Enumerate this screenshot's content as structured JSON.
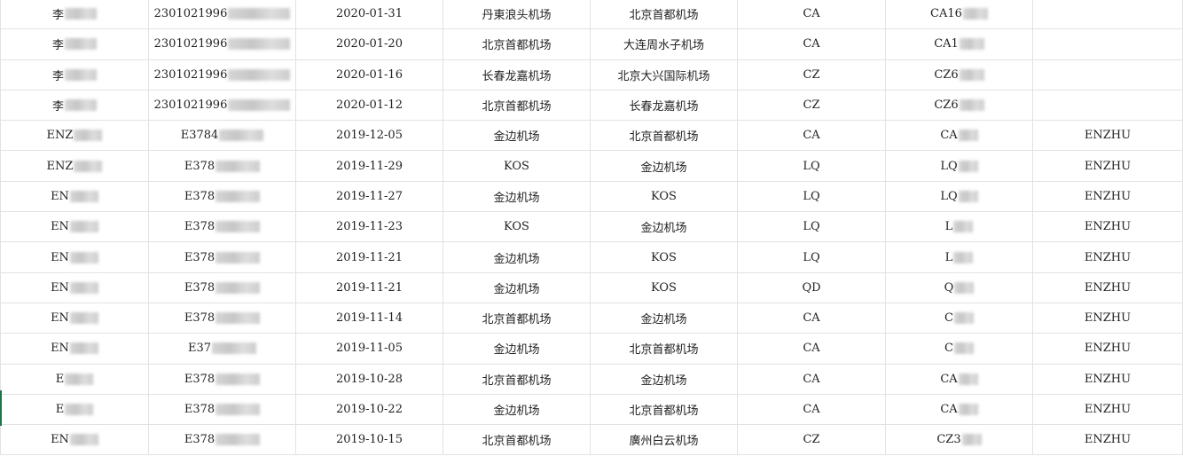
{
  "rows": [
    [
      "李",
      "2301021996",
      "2020-01-31",
      "丹東浪头机场",
      "北京首都机场",
      "CA",
      "CA16",
      ""
    ],
    [
      "李",
      "2301021996",
      "2020-01-20",
      "北京首都机场",
      "大连周水子机场",
      "CA",
      "CA1",
      ""
    ],
    [
      "李",
      "2301021996",
      "2020-01-16",
      "长春龙嘉机场",
      "北京大兴国际机场",
      "CZ",
      "CZ6",
      ""
    ],
    [
      "李",
      "2301021996",
      "2020-01-12",
      "北京首都机场",
      "长春龙嘉机场",
      "CZ",
      "CZ6",
      ""
    ],
    [
      "ENZ",
      "E3784",
      "2019-12-05",
      "金边机场",
      "北京首都机场",
      "CA",
      "CA",
      "ENZHU"
    ],
    [
      "ENZ",
      "E378",
      "2019-11-29",
      "KOS",
      "金边机场",
      "LQ",
      "LQ",
      "ENZHU"
    ],
    [
      "EN",
      "E378",
      "2019-11-27",
      "金边机场",
      "KOS",
      "LQ",
      "LQ",
      "ENZHU"
    ],
    [
      "EN",
      "E378",
      "2019-11-23",
      "KOS",
      "金边机场",
      "LQ",
      "L",
      "ENZHU"
    ],
    [
      "EN",
      "E378",
      "2019-11-21",
      "金边机场",
      "KOS",
      "LQ",
      "L",
      "ENZHU"
    ],
    [
      "EN",
      "E378",
      "2019-11-21",
      "金边机场",
      "KOS",
      "QD",
      "Q",
      "ENZHU"
    ],
    [
      "EN",
      "E378",
      "2019-11-14",
      "北京首都机场",
      "金边机场",
      "CA",
      "C",
      "ENZHU"
    ],
    [
      "EN",
      "E37",
      "2019-11-05",
      "金边机场",
      "北京首都机场",
      "CA",
      "C",
      "ENZHU"
    ],
    [
      "E",
      "E378",
      "2019-10-28",
      "北京首都机场",
      "金边机场",
      "CA",
      "CA",
      "ENZHU"
    ],
    [
      "E",
      "E378",
      "2019-10-22",
      "金边机场",
      "北京首都机场",
      "CA",
      "CA",
      "ENZHU"
    ],
    [
      "EN",
      "E378",
      "2019-10-15",
      "北京首都机场",
      "廣州白云机场",
      "CZ",
      "CZ3",
      "ENZHU"
    ]
  ],
  "masked_columns": [
    0,
    1,
    6
  ],
  "colors": {
    "grid": "#e2e2e2",
    "text": "#222222",
    "selection_marker": "#217346"
  }
}
